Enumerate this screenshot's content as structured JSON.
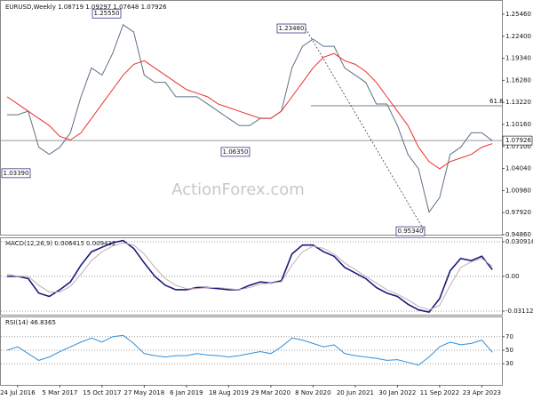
{
  "chart_data": [
    {
      "type": "line",
      "title": "EURUSD,Weekly 1.08719 1.09297 1.07648 1.07926",
      "watermark": "ActionForex.com",
      "categories": [
        null,
        "24 Jul 2016",
        null,
        null,
        null,
        "5 Mar 2017",
        null,
        null,
        null,
        "15 Oct 2017",
        null,
        null,
        null,
        "27 May 2018",
        null,
        null,
        null,
        "6 Jan 2019",
        null,
        null,
        null,
        "18 Aug 2019",
        null,
        null,
        null,
        "29 Mar 2020",
        null,
        null,
        null,
        "8 Nov 2020",
        null,
        null,
        null,
        "20 Jun 2021",
        null,
        null,
        null,
        "30 Jan 2022",
        null,
        null,
        null,
        "11 Sep 2022",
        null,
        null,
        null,
        "23 Apr 2023",
        null
      ],
      "series": [
        {
          "color": "#5b7083",
          "values": [
            1.115,
            1.115,
            1.12,
            1.07,
            1.06,
            1.07,
            1.09,
            1.14,
            1.18,
            1.17,
            1.2,
            1.24,
            1.23,
            1.17,
            1.16,
            1.16,
            1.14,
            1.14,
            1.14,
            1.13,
            1.12,
            1.11,
            1.1,
            1.1,
            1.11,
            1.11,
            1.12,
            1.18,
            1.21,
            1.22,
            1.21,
            1.21,
            1.18,
            1.17,
            1.16,
            1.13,
            1.13,
            1.1,
            1.06,
            1.04,
            0.98,
            1.0,
            1.06,
            1.07,
            1.09,
            1.09,
            1.079
          ]
        },
        {
          "color": "#e8302a",
          "values": [
            1.14,
            1.13,
            1.12,
            1.11,
            1.1,
            1.085,
            1.08,
            1.09,
            1.11,
            1.13,
            1.15,
            1.17,
            1.185,
            1.19,
            1.18,
            1.17,
            1.16,
            1.15,
            1.145,
            1.14,
            1.13,
            1.125,
            1.12,
            1.115,
            1.11,
            1.11,
            1.12,
            1.14,
            1.16,
            1.18,
            1.195,
            1.2,
            1.19,
            1.185,
            1.175,
            1.16,
            1.14,
            1.12,
            1.1,
            1.07,
            1.05,
            1.04,
            1.05,
            1.055,
            1.06,
            1.07,
            1.075
          ]
        }
      ],
      "ylim": [
        0.9486,
        1.2706
      ],
      "yticks": [
        {
          "value": 1.2546,
          "label": "1.25460"
        },
        {
          "value": 1.224,
          "label": "1.22400"
        },
        {
          "value": 1.1934,
          "label": "1.19340"
        },
        {
          "value": 1.1628,
          "label": "1.16280"
        },
        {
          "value": 1.1322,
          "label": "1.13220"
        },
        {
          "value": 1.1016,
          "label": "1.10160"
        },
        {
          "value": 1.071,
          "label": "1.07100"
        },
        {
          "value": 1.0404,
          "label": "1.04040"
        },
        {
          "value": 1.0098,
          "label": "1.00980"
        },
        {
          "value": 0.9792,
          "label": "0.97920"
        },
        {
          "value": 0.9486,
          "label": "0.94860"
        }
      ],
      "annotations": [
        {
          "value": 1.2555,
          "label": "1.25550"
        },
        {
          "value": 1.0635,
          "label": "1.06350"
        },
        {
          "value": 1.0339,
          "label": "1.03390"
        },
        {
          "value": 1.2348,
          "label": "1.23480"
        },
        {
          "value": 0.9534,
          "label": "0.95340"
        }
      ],
      "fib_level": {
        "value": 1.1275,
        "label": "61.8"
      },
      "last_price": 1.07926,
      "grid": false
    },
    {
      "type": "line",
      "title": "MACD(12,26,9) 0.006415 0.009432",
      "series": [
        {
          "color": "#1a1a7a",
          "values": [
            0,
            0,
            -0.002,
            -0.015,
            -0.018,
            -0.012,
            -0.005,
            0.01,
            0.022,
            0.026,
            0.03,
            0.032,
            0.025,
            0.012,
            0,
            -0.008,
            -0.012,
            -0.012,
            -0.01,
            -0.01,
            -0.011,
            -0.012,
            -0.012,
            -0.008,
            -0.005,
            -0.006,
            -0.004,
            0.02,
            0.028,
            0.028,
            0.022,
            0.018,
            0.008,
            0.003,
            -0.002,
            -0.01,
            -0.015,
            -0.018,
            -0.025,
            -0.03,
            -0.032,
            -0.02,
            0.005,
            0.016,
            0.014,
            0.018,
            0.006
          ]
        },
        {
          "color": "#c9a9b5",
          "values": [
            0.002,
            0,
            0,
            -0.008,
            -0.014,
            -0.014,
            -0.009,
            0.002,
            0.014,
            0.022,
            0.027,
            0.03,
            0.028,
            0.02,
            0.008,
            -0.002,
            -0.008,
            -0.011,
            -0.011,
            -0.01,
            -0.01,
            -0.011,
            -0.012,
            -0.01,
            -0.007,
            -0.006,
            -0.005,
            0.01,
            0.022,
            0.027,
            0.025,
            0.02,
            0.012,
            0.006,
            0,
            -0.006,
            -0.012,
            -0.016,
            -0.021,
            -0.027,
            -0.03,
            -0.026,
            -0.008,
            0.008,
            0.013,
            0.016,
            0.009
          ]
        }
      ],
      "ylim": [
        -0.0343,
        0.0341
      ],
      "yticks": [
        0.030916,
        {
          "value": 0,
          "label": "0.00"
        },
        -0.031124
      ],
      "grid": true
    },
    {
      "type": "line",
      "title": "RSI(14) 46.8365",
      "series": [
        {
          "color": "#2f8fd8",
          "values": [
            50,
            55,
            45,
            35,
            40,
            48,
            55,
            62,
            68,
            62,
            70,
            72,
            60,
            45,
            42,
            40,
            42,
            42,
            45,
            43,
            42,
            40,
            42,
            45,
            48,
            45,
            55,
            68,
            65,
            60,
            55,
            58,
            45,
            42,
            40,
            38,
            35,
            36,
            32,
            28,
            40,
            55,
            62,
            58,
            60,
            65,
            47
          ]
        }
      ],
      "ylim": [
        0,
        100
      ],
      "yticks": [
        70,
        50,
        30
      ],
      "grid": true
    }
  ]
}
